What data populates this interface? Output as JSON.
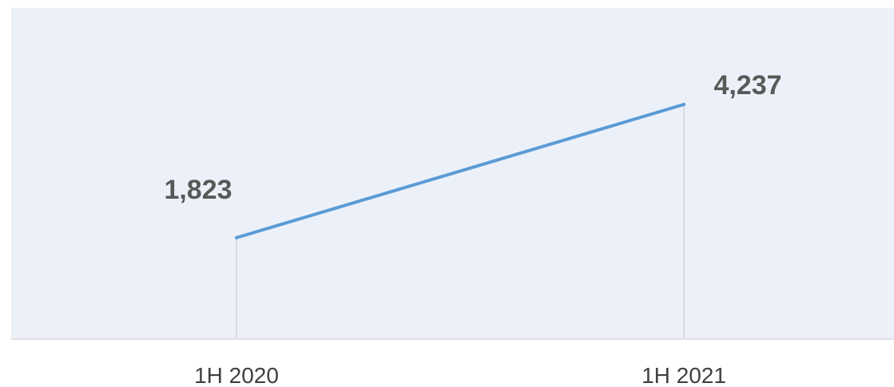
{
  "chart_data": {
    "type": "line",
    "categories": [
      "1H 2020",
      "1H 2021"
    ],
    "series": [
      {
        "values": [
          1823,
          4237
        ]
      }
    ],
    "data_labels": [
      "1,823",
      "4,237"
    ],
    "ylim": [
      0,
      5000
    ],
    "grid": false,
    "legend": "none",
    "colors": {
      "background": "#ecf1f9",
      "line": "#5b9bd5",
      "drop_lines": "#d0d5dc",
      "axis": "#d9d9d9",
      "data_label": "#595959",
      "tick_label": "#404040"
    }
  }
}
